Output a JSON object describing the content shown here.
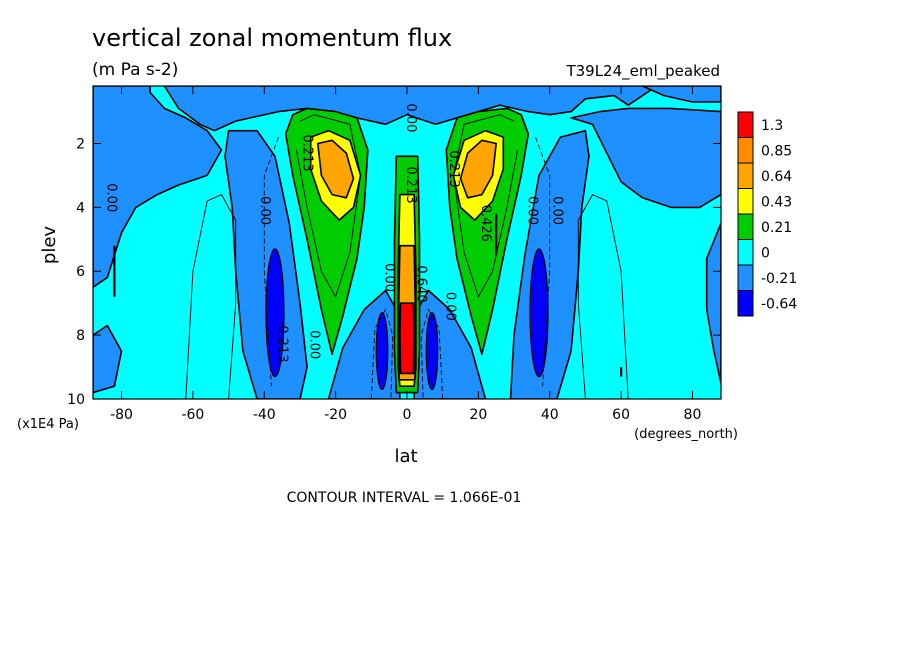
{
  "chart_data": {
    "type": "heatmap",
    "title": "vertical zonal momentum flux",
    "subtitle": "(m Pa s-2)",
    "run_label": "T39L24_eml_peaked",
    "xlabel": "lat",
    "ylabel": "plev",
    "x_units": "(degrees_north)",
    "y_units": "(x1E4 Pa)",
    "xlim": [
      -88,
      88
    ],
    "ylim": [
      10,
      0.2
    ],
    "x_ticks": [
      -80,
      -60,
      -40,
      -20,
      0,
      20,
      40,
      60,
      80
    ],
    "y_ticks": [
      2,
      4,
      6,
      8,
      10
    ],
    "x_tick_labels": [
      "-80",
      "-60",
      "-40",
      "-20",
      "0",
      "20",
      "40",
      "60",
      "80"
    ],
    "y_tick_labels": [
      "2",
      "4",
      "6",
      "8",
      "10"
    ],
    "footer": "CONTOUR INTERVAL = 1.066E-01",
    "legend": {
      "placement": "right",
      "labels": [
        "1.3",
        "0.85",
        "0.64",
        "0.43",
        "0.21",
        "0",
        "-0.21",
        "-0.64"
      ],
      "colors": [
        "#ff0000",
        "#ff8c00",
        "#ffa500",
        "#ffff00",
        "#00cd00",
        "#00ffff",
        "#1e90ff",
        "#0000ff"
      ]
    },
    "background_color": "#00ffff",
    "contour_labels": [
      {
        "text": "0.00",
        "lat": 0,
        "plev": 1.2
      },
      {
        "text": "0.213",
        "lat": -29,
        "plev": 2.3
      },
      {
        "text": "0.213",
        "lat": 0,
        "plev": 3.3
      },
      {
        "text": "0.213",
        "lat": 12,
        "plev": 2.8
      },
      {
        "text": "0.426",
        "lat": 21,
        "plev": 4.5
      },
      {
        "text": "0.00",
        "lat": -84,
        "plev": 3.7
      },
      {
        "text": "0.00",
        "lat": -41,
        "plev": 4.1
      },
      {
        "text": "0.00",
        "lat": 34,
        "plev": 4.1
      },
      {
        "text": "0.00",
        "lat": 41,
        "plev": 4.1
      },
      {
        "text": "0.00",
        "lat": -6,
        "plev": 6.2
      },
      {
        "text": "0.00",
        "lat": 11,
        "plev": 7.1
      },
      {
        "text": "0.00",
        "lat": -27,
        "plev": 8.3
      },
      {
        "text": "0.640",
        "lat": 3,
        "plev": 6.4
      },
      {
        "text": "-0.213",
        "lat": -36,
        "plev": 8.2
      }
    ]
  }
}
